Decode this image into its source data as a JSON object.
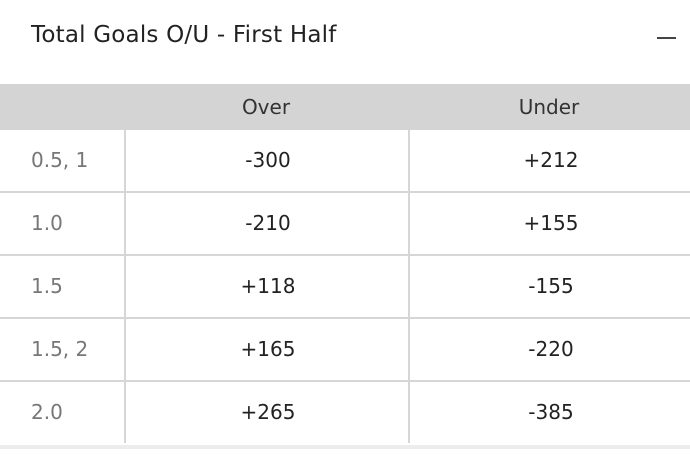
{
  "market": {
    "title": "Total Goals O/U  - First Half",
    "collapse_icon": "minus-icon"
  },
  "table": {
    "headers": [
      "",
      "Over",
      "Under"
    ],
    "rows": [
      {
        "line": "0.5, 1",
        "over": "-300",
        "under": "+212"
      },
      {
        "line": "1.0",
        "over": "-210",
        "under": "+155"
      },
      {
        "line": "1.5",
        "over": "+118",
        "under": "-155"
      },
      {
        "line": "1.5, 2",
        "over": "+165",
        "under": "-220"
      },
      {
        "line": "2.0",
        "over": "+265",
        "under": "-385"
      }
    ]
  }
}
